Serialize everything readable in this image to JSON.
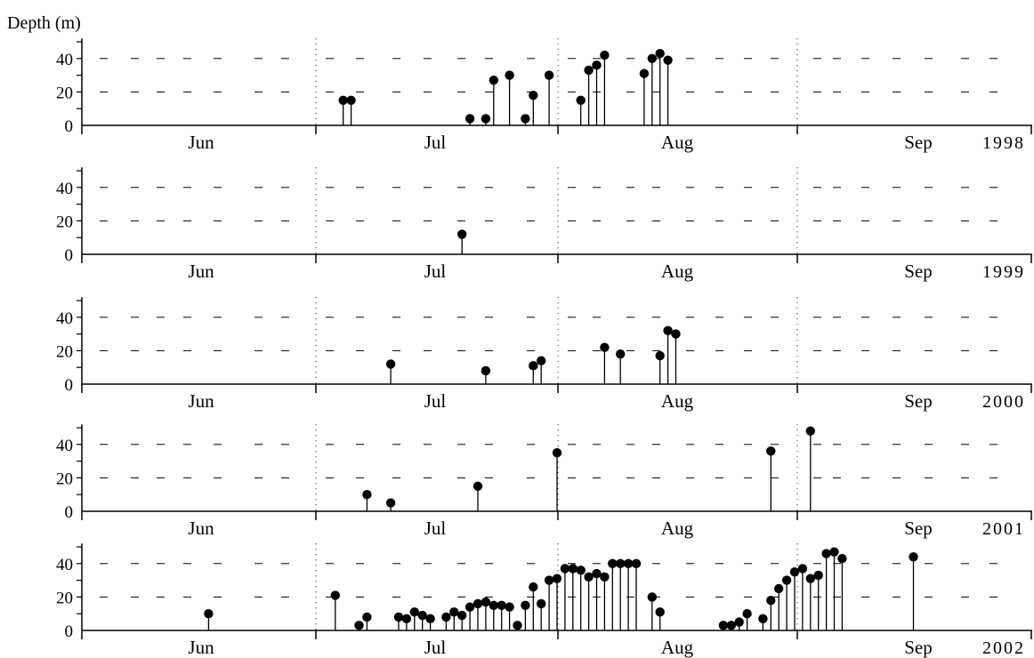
{
  "chart_data": {
    "type": "scatter",
    "style": "lollipop",
    "ylabel": "Depth (m)",
    "y_ticks": [
      "0",
      "20",
      "40"
    ],
    "ylim": [
      0,
      50
    ],
    "x_ticks": [
      "Jun",
      "Jul",
      "Aug",
      "Sep"
    ],
    "x_range": [
      "06-01",
      "09-30"
    ],
    "panels": [
      {
        "year": "1998",
        "points": [
          {
            "date": "07-04",
            "y": 15
          },
          {
            "date": "07-05",
            "y": 15
          },
          {
            "date": "07-20",
            "y": 4
          },
          {
            "date": "07-22",
            "y": 4
          },
          {
            "date": "07-23",
            "y": 27
          },
          {
            "date": "07-25",
            "y": 30
          },
          {
            "date": "07-27",
            "y": 4
          },
          {
            "date": "07-28",
            "y": 18
          },
          {
            "date": "07-30",
            "y": 30
          },
          {
            "date": "08-03",
            "y": 15
          },
          {
            "date": "08-04",
            "y": 33
          },
          {
            "date": "08-05",
            "y": 36
          },
          {
            "date": "08-06",
            "y": 42
          },
          {
            "date": "08-11",
            "y": 31
          },
          {
            "date": "08-12",
            "y": 40
          },
          {
            "date": "08-13",
            "y": 43
          },
          {
            "date": "08-14",
            "y": 39
          }
        ]
      },
      {
        "year": "1999",
        "points": [
          {
            "date": "07-19",
            "y": 12
          }
        ]
      },
      {
        "year": "2000",
        "points": [
          {
            "date": "07-10",
            "y": 12
          },
          {
            "date": "07-22",
            "y": 8
          },
          {
            "date": "07-28",
            "y": 11
          },
          {
            "date": "07-29",
            "y": 14
          },
          {
            "date": "08-06",
            "y": 22
          },
          {
            "date": "08-08",
            "y": 18
          },
          {
            "date": "08-13",
            "y": 17
          },
          {
            "date": "08-14",
            "y": 32
          },
          {
            "date": "08-15",
            "y": 30
          }
        ]
      },
      {
        "year": "2001",
        "points": [
          {
            "date": "07-07",
            "y": 10
          },
          {
            "date": "07-10",
            "y": 5
          },
          {
            "date": "07-21",
            "y": 15
          },
          {
            "date": "07-31",
            "y": 35
          },
          {
            "date": "08-27",
            "y": 36
          },
          {
            "date": "09-01",
            "y": 48
          }
        ]
      },
      {
        "year": "2002",
        "points": [
          {
            "date": "06-17",
            "y": 10
          },
          {
            "date": "07-03",
            "y": 21
          },
          {
            "date": "07-06",
            "y": 3
          },
          {
            "date": "07-07",
            "y": 8
          },
          {
            "date": "07-11",
            "y": 8
          },
          {
            "date": "07-12",
            "y": 7
          },
          {
            "date": "07-13",
            "y": 11
          },
          {
            "date": "07-14",
            "y": 9
          },
          {
            "date": "07-15",
            "y": 7
          },
          {
            "date": "07-17",
            "y": 8
          },
          {
            "date": "07-18",
            "y": 11
          },
          {
            "date": "07-19",
            "y": 9
          },
          {
            "date": "07-20",
            "y": 14
          },
          {
            "date": "07-21",
            "y": 16
          },
          {
            "date": "07-22",
            "y": 17
          },
          {
            "date": "07-23",
            "y": 15
          },
          {
            "date": "07-24",
            "y": 15
          },
          {
            "date": "07-25",
            "y": 14
          },
          {
            "date": "07-26",
            "y": 3
          },
          {
            "date": "07-27",
            "y": 15
          },
          {
            "date": "07-28",
            "y": 26
          },
          {
            "date": "07-29",
            "y": 16
          },
          {
            "date": "07-30",
            "y": 30
          },
          {
            "date": "07-31",
            "y": 31
          },
          {
            "date": "08-01",
            "y": 37
          },
          {
            "date": "08-02",
            "y": 37
          },
          {
            "date": "08-03",
            "y": 36
          },
          {
            "date": "08-04",
            "y": 32
          },
          {
            "date": "08-05",
            "y": 34
          },
          {
            "date": "08-06",
            "y": 32
          },
          {
            "date": "08-07",
            "y": 40
          },
          {
            "date": "08-08",
            "y": 40
          },
          {
            "date": "08-09",
            "y": 40
          },
          {
            "date": "08-10",
            "y": 40
          },
          {
            "date": "08-12",
            "y": 20
          },
          {
            "date": "08-13",
            "y": 11
          },
          {
            "date": "08-21",
            "y": 3
          },
          {
            "date": "08-22",
            "y": 3
          },
          {
            "date": "08-23",
            "y": 5
          },
          {
            "date": "08-24",
            "y": 10
          },
          {
            "date": "08-26",
            "y": 7
          },
          {
            "date": "08-27",
            "y": 18
          },
          {
            "date": "08-28",
            "y": 25
          },
          {
            "date": "08-29",
            "y": 30
          },
          {
            "date": "08-30",
            "y": 35
          },
          {
            "date": "08-31",
            "y": 37
          },
          {
            "date": "09-01",
            "y": 31
          },
          {
            "date": "09-02",
            "y": 33
          },
          {
            "date": "09-03",
            "y": 46
          },
          {
            "date": "09-04",
            "y": 47
          },
          {
            "date": "09-05",
            "y": 43
          },
          {
            "date": "09-14",
            "y": 44
          }
        ]
      }
    ],
    "grid": "dashed horizontal at 20 and 40, dotted month dividers",
    "colors": {
      "marker": "#000000",
      "axis": "#000000",
      "grid": "#000000"
    }
  }
}
